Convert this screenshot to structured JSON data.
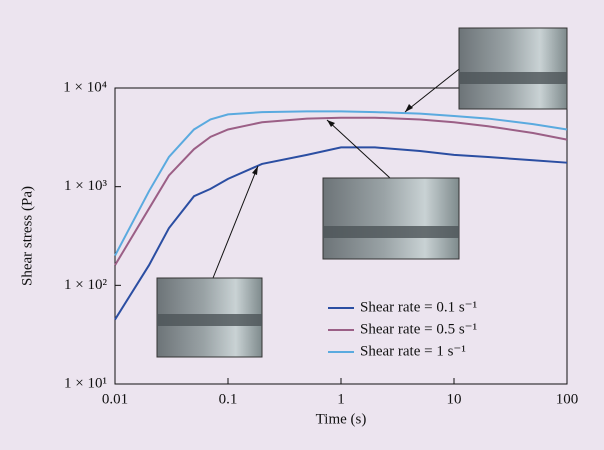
{
  "chart_data": {
    "type": "line",
    "xlabel": "Time  (s)",
    "ylabel": "Shear stress  (Pa)",
    "xscale": "log",
    "yscale": "log",
    "xlim": [
      0.01,
      100
    ],
    "ylim": [
      10,
      10000
    ],
    "xticks": [
      0.01,
      0.1,
      1,
      10,
      100
    ],
    "yticks": [
      {
        "value": 10,
        "label": "1 × 10¹"
      },
      {
        "value": 100,
        "label": "1 × 10²"
      },
      {
        "value": 1000,
        "label": "1 × 10³"
      },
      {
        "value": 10000,
        "label": "1 × 10⁴"
      }
    ],
    "legend": "lower right",
    "x": [
      0.01,
      0.02,
      0.03,
      0.05,
      0.07,
      0.1,
      0.2,
      0.5,
      1,
      2,
      5,
      10,
      20,
      50,
      100
    ],
    "series": [
      {
        "name": "Shear rate = 0.1 s⁻¹",
        "color": "#2b4ea2",
        "values": [
          45,
          160,
          380,
          800,
          950,
          1200,
          1700,
          2100,
          2500,
          2500,
          2300,
          2100,
          2000,
          1850,
          1750
        ]
      },
      {
        "name": "Shear rate = 0.5 s⁻¹",
        "color": "#9b5f86",
        "values": [
          160,
          600,
          1300,
          2400,
          3200,
          3800,
          4500,
          4900,
          5000,
          5000,
          4800,
          4500,
          4100,
          3500,
          3000
        ]
      },
      {
        "name": "Shear rate = 1 s⁻¹",
        "color": "#5aaadf",
        "values": [
          200,
          900,
          2000,
          3800,
          4800,
          5400,
          5700,
          5800,
          5800,
          5700,
          5500,
          5200,
          4900,
          4300,
          3800
        ]
      }
    ]
  }
}
